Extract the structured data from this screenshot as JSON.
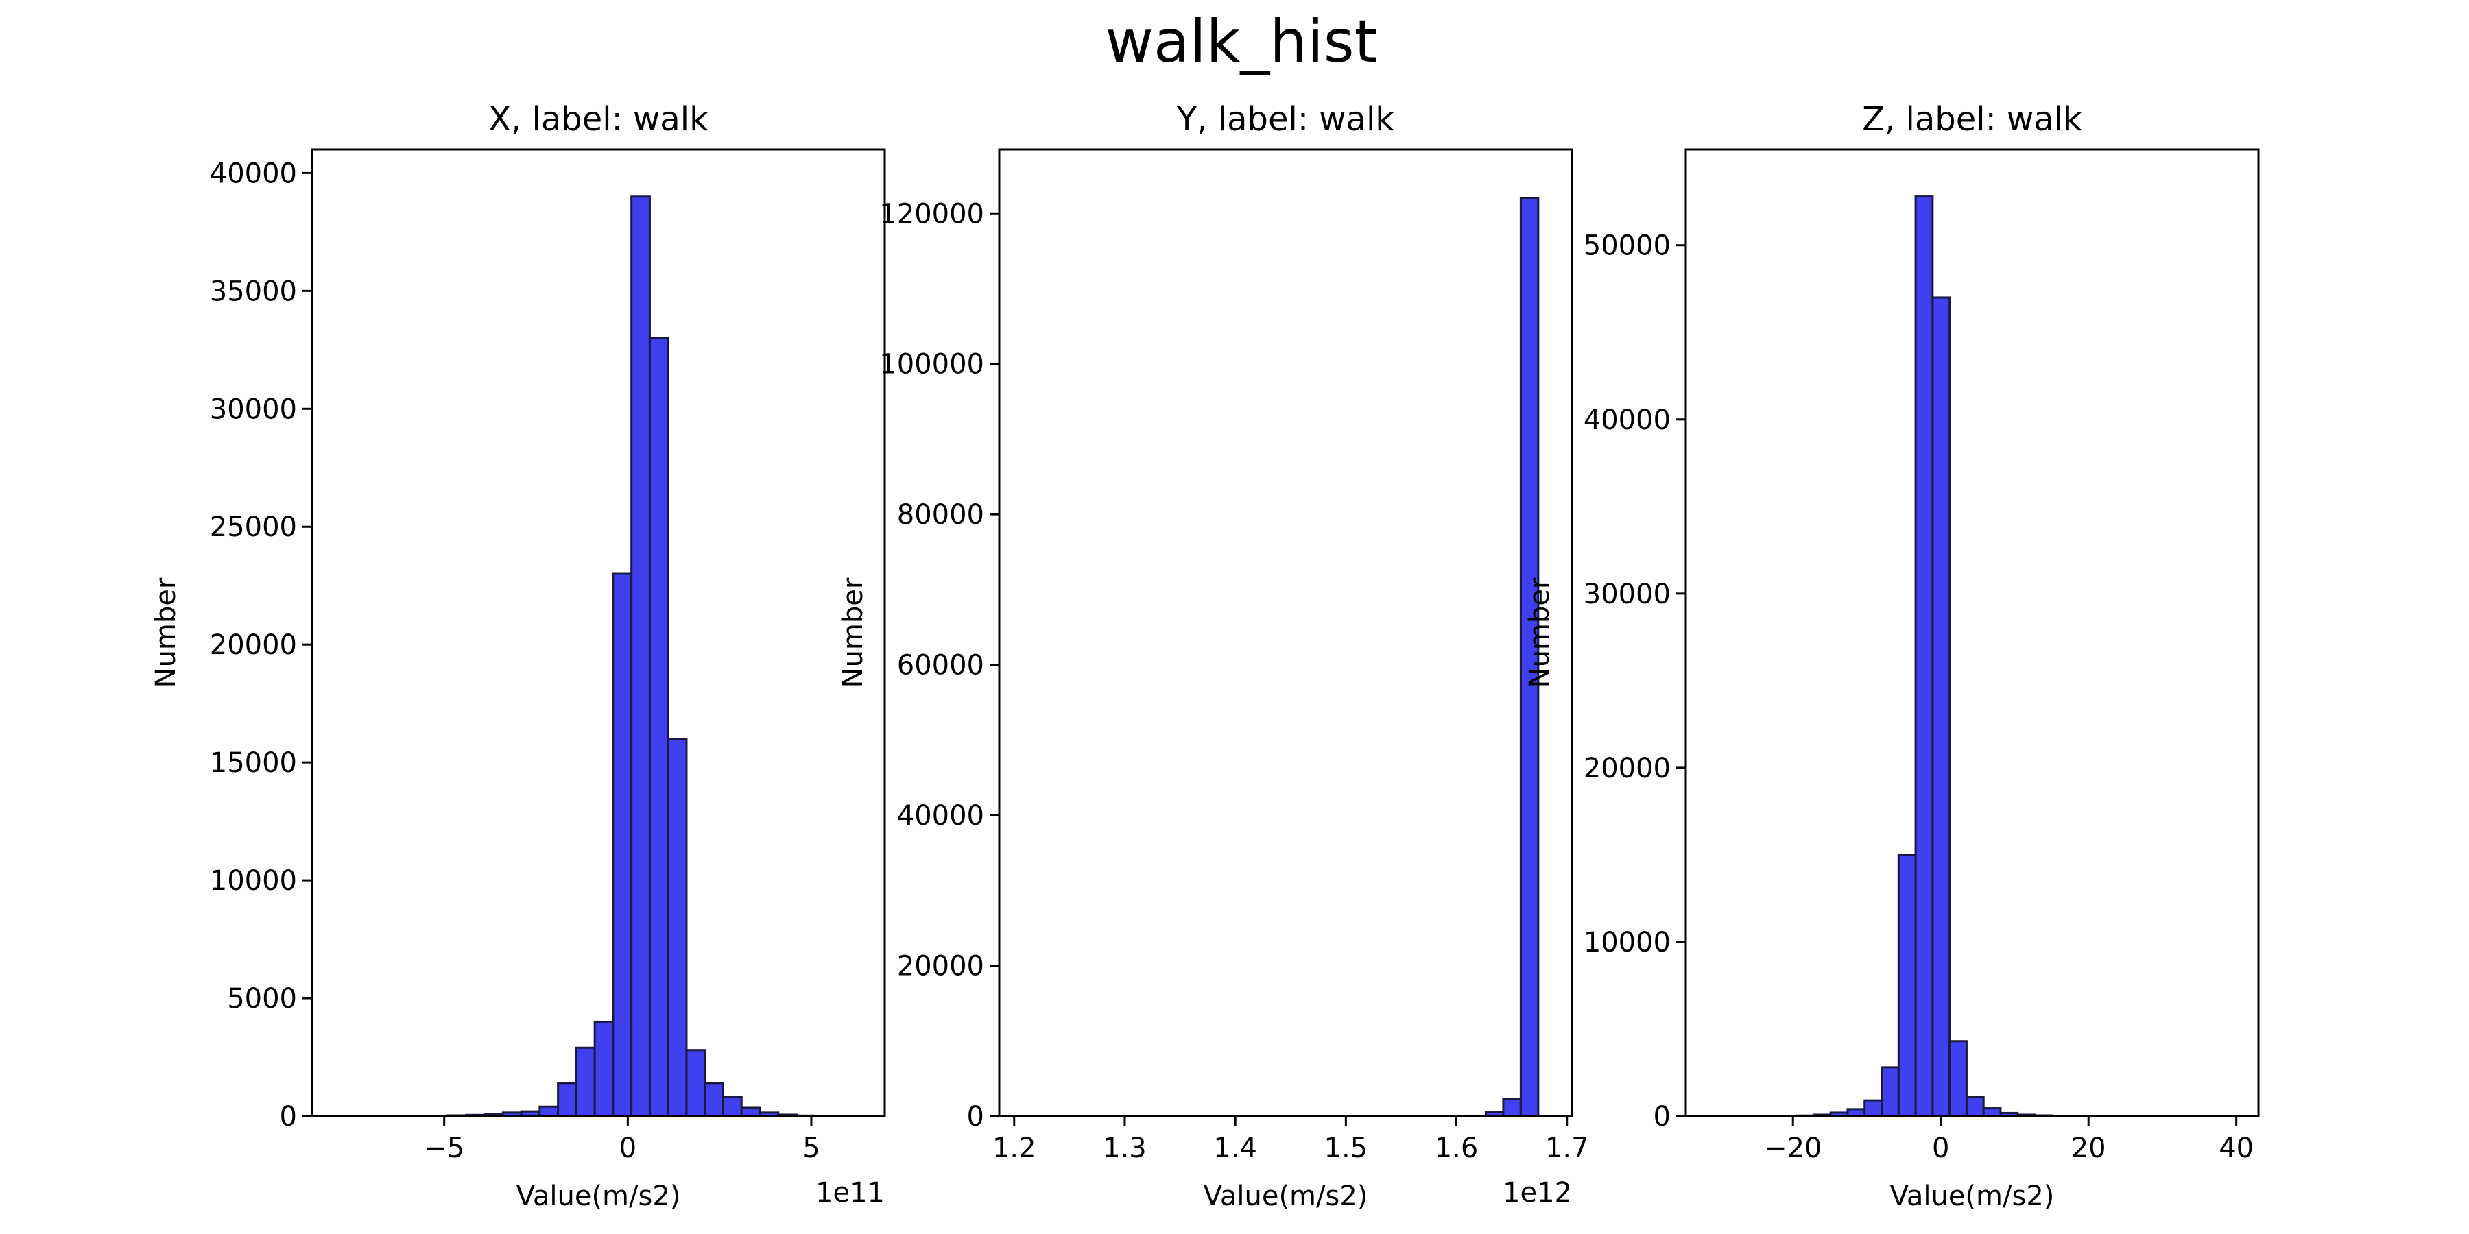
{
  "figure_title": "walk_hist",
  "colors": {
    "bar_fill": "#4040f0",
    "bar_edge": "#1a1a40",
    "axis": "#000000"
  },
  "chart_data": [
    {
      "type": "bar",
      "title": "X, label: walk",
      "xlabel": "Value(m/s2)",
      "ylabel": "Number",
      "x_offset_label": "1e11",
      "xlim": [
        -8.6,
        7.0
      ],
      "ylim": [
        0,
        41000
      ],
      "x_ticks": [
        -5,
        0,
        5
      ],
      "x_tick_labels": [
        "−5",
        "0",
        "5"
      ],
      "y_ticks": [
        0,
        5000,
        10000,
        15000,
        20000,
        25000,
        30000,
        35000,
        40000
      ],
      "y_tick_labels": [
        "0",
        "5000",
        "10000",
        "15000",
        "20000",
        "25000",
        "30000",
        "35000",
        "40000"
      ],
      "bin_edges": [
        -7.9,
        -7.4,
        -6.9,
        -6.4,
        -5.9,
        -5.4,
        -4.9,
        -4.4,
        -3.9,
        -3.4,
        -2.9,
        -2.4,
        -1.9,
        -1.4,
        -0.9,
        -0.4,
        0.1,
        0.6,
        1.1,
        1.6,
        2.1,
        2.6,
        3.1,
        3.6,
        4.1,
        4.6,
        5.1,
        5.6,
        6.1
      ],
      "values": [
        0,
        0,
        0,
        0,
        0,
        0,
        30,
        50,
        80,
        150,
        200,
        400,
        1400,
        2900,
        4000,
        23000,
        39000,
        33000,
        16000,
        2800,
        1400,
        800,
        350,
        150,
        60,
        20,
        10,
        5
      ]
    },
    {
      "type": "bar",
      "title": "Y, label: walk",
      "xlabel": "Value(m/s2)",
      "ylabel": "Number",
      "x_offset_label": "1e12",
      "xlim": [
        1.1865,
        1.7045
      ],
      "ylim": [
        0,
        128500
      ],
      "x_ticks": [
        1.2,
        1.3,
        1.4,
        1.5,
        1.6,
        1.7
      ],
      "x_tick_labels": [
        "1.2",
        "1.3",
        "1.4",
        "1.5",
        "1.6",
        "1.7"
      ],
      "y_ticks": [
        0,
        20000,
        40000,
        60000,
        80000,
        100000,
        120000
      ],
      "y_tick_labels": [
        "0",
        "20000",
        "40000",
        "60000",
        "80000",
        "100000",
        "120000"
      ],
      "bin_edges": [
        1.2,
        1.2158,
        1.2316,
        1.2474,
        1.2632,
        1.279,
        1.2948,
        1.3106,
        1.3264,
        1.3422,
        1.358,
        1.3738,
        1.3896,
        1.4054,
        1.4212,
        1.437,
        1.4528,
        1.4686,
        1.4844,
        1.5002,
        1.516,
        1.5318,
        1.5476,
        1.5634,
        1.5792,
        1.595,
        1.6108,
        1.6266,
        1.6424,
        1.6582,
        1.674
      ],
      "values": [
        10,
        5,
        5,
        5,
        5,
        5,
        5,
        5,
        5,
        5,
        5,
        5,
        5,
        5,
        5,
        5,
        5,
        5,
        5,
        5,
        5,
        5,
        5,
        5,
        10,
        20,
        50,
        500,
        2300,
        122000
      ]
    },
    {
      "type": "bar",
      "title": "Z, label: walk",
      "xlabel": "Value(m/s2)",
      "ylabel": "Number",
      "x_offset_label": "",
      "xlim": [
        -34.5,
        43.0
      ],
      "ylim": [
        0,
        55500
      ],
      "x_ticks": [
        -20,
        0,
        20,
        40
      ],
      "x_tick_labels": [
        "−20",
        "0",
        "20",
        "40"
      ],
      "y_ticks": [
        0,
        10000,
        20000,
        30000,
        40000,
        50000
      ],
      "y_tick_labels": [
        "0",
        "10000",
        "20000",
        "30000",
        "40000",
        "50000"
      ],
      "bin_edges": [
        -31,
        -28.7,
        -26.4,
        -24.1,
        -21.8,
        -19.5,
        -17.2,
        -14.9,
        -12.6,
        -10.3,
        -8.0,
        -5.7,
        -3.4,
        -1.1,
        1.2,
        3.5,
        5.8,
        8.1,
        10.4,
        12.7,
        15.0,
        17.3,
        19.6,
        21.9,
        24.2,
        26.5,
        28.8,
        31.1,
        33.4,
        35.7,
        38.0
      ],
      "values": [
        0,
        0,
        0,
        0,
        10,
        30,
        80,
        200,
        400,
        900,
        2800,
        15000,
        52800,
        47000,
        4300,
        1100,
        450,
        180,
        80,
        40,
        20,
        10,
        5,
        5,
        5,
        0,
        0,
        0,
        0,
        5
      ]
    }
  ]
}
